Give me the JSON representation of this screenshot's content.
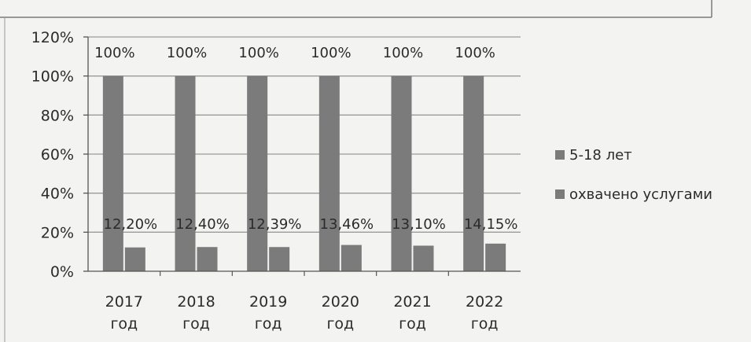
{
  "chart_data": {
    "type": "bar",
    "categories": [
      "2017 год",
      "2018 год",
      "2019 год",
      "2020 год",
      "2021 год",
      "2022 год"
    ],
    "series": [
      {
        "name": "5-18 лет",
        "values": [
          100,
          100,
          100,
          100,
          100,
          100
        ],
        "labels": [
          "100%",
          "100%",
          "100%",
          "100%",
          "100%",
          "100%"
        ]
      },
      {
        "name": "охвачено услугами",
        "values": [
          12.2,
          12.4,
          12.39,
          13.46,
          13.1,
          14.15
        ],
        "labels": [
          "12,20%",
          "12,40%",
          "12,39%",
          "13,46%",
          "13,10%",
          "14,15%"
        ]
      }
    ],
    "yticks": [
      "0%",
      "20%",
      "40%",
      "60%",
      "80%",
      "100%",
      "120%"
    ],
    "ylim": [
      0,
      120
    ],
    "grid": true,
    "legend_position": "right",
    "colors": {
      "bars": "#7b7b7b",
      "grid": "#9a9a9a",
      "axis": "#555555"
    }
  }
}
